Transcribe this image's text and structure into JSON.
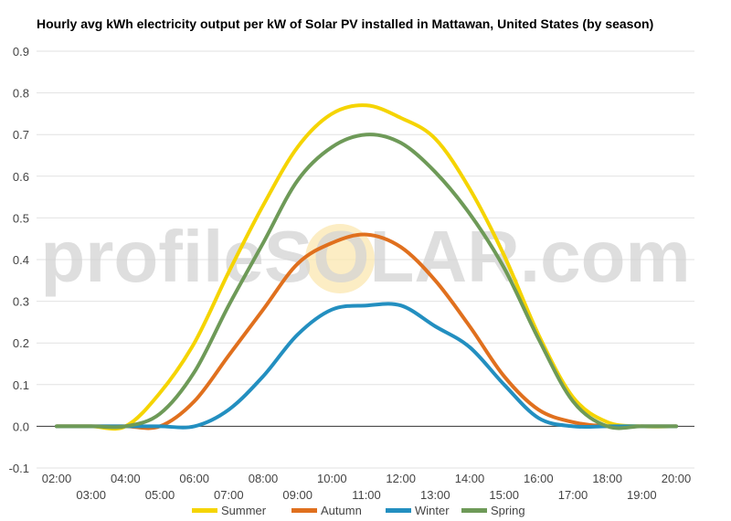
{
  "chart_data": {
    "type": "line",
    "title": "Hourly avg kWh electricity output per kW of Solar PV installed in Mattawan, United States (by season)",
    "watermark": "profileSOLAR.com",
    "x": [
      "02:00",
      "03:00",
      "04:00",
      "05:00",
      "06:00",
      "07:00",
      "08:00",
      "09:00",
      "10:00",
      "11:00",
      "12:00",
      "13:00",
      "14:00",
      "15:00",
      "16:00",
      "17:00",
      "18:00",
      "19:00",
      "20:00"
    ],
    "ylim": [
      -0.1,
      0.9
    ],
    "yticks": [
      "-0.1",
      "0.0",
      "0.1",
      "0.2",
      "0.3",
      "0.4",
      "0.5",
      "0.6",
      "0.7",
      "0.8",
      "0.9"
    ],
    "grid": true,
    "legend_position": "bottom",
    "series": [
      {
        "name": "Summer",
        "color": "#f5d400",
        "values": [
          0,
          0,
          0,
          0.08,
          0.2,
          0.37,
          0.53,
          0.67,
          0.75,
          0.77,
          0.74,
          0.69,
          0.57,
          0.41,
          0.22,
          0.07,
          0.01,
          0,
          0
        ]
      },
      {
        "name": "Autumn",
        "color": "#e0701e",
        "values": [
          0,
          0,
          0,
          0,
          0.06,
          0.17,
          0.28,
          0.39,
          0.44,
          0.46,
          0.43,
          0.35,
          0.24,
          0.12,
          0.04,
          0.01,
          0,
          0,
          0
        ]
      },
      {
        "name": "Winter",
        "color": "#238fc0",
        "values": [
          0,
          0,
          0,
          0,
          0,
          0.04,
          0.12,
          0.22,
          0.28,
          0.29,
          0.29,
          0.24,
          0.19,
          0.1,
          0.02,
          0,
          0,
          0,
          0
        ]
      },
      {
        "name": "Spring",
        "color": "#6e9a58",
        "values": [
          0,
          0,
          0,
          0.03,
          0.13,
          0.29,
          0.44,
          0.59,
          0.67,
          0.7,
          0.68,
          0.61,
          0.51,
          0.38,
          0.21,
          0.06,
          0,
          0,
          0
        ]
      }
    ]
  }
}
